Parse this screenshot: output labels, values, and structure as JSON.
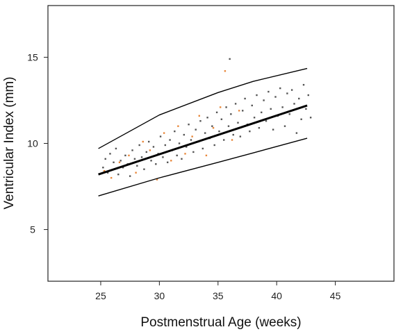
{
  "chart_data": {
    "type": "scatter",
    "title": "",
    "xlabel": "Postmenstrual Age (weeks)",
    "ylabel": "Ventricular Index (mm)",
    "xlim": [
      20.5,
      50
    ],
    "ylim": [
      2.0,
      18.0
    ],
    "xticks": [
      25,
      30,
      35,
      40,
      45
    ],
    "yticks": [
      5,
      10,
      15
    ],
    "grid": false,
    "legend": "none",
    "colors": {
      "gray_points": "#555555",
      "orange_points": "#e8873a",
      "lines": "#000000"
    },
    "lines": [
      {
        "role": "mean",
        "x": [
          24.8,
          42.6
        ],
        "y": [
          8.2,
          12.2
        ]
      },
      {
        "role": "upper",
        "x": [
          24.8,
          30,
          35,
          38,
          42.6
        ],
        "y": [
          9.7,
          11.65,
          12.95,
          13.6,
          14.35
        ]
      },
      {
        "role": "lower",
        "x": [
          24.8,
          30,
          35,
          38,
          42.6
        ],
        "y": [
          6.95,
          8.0,
          8.9,
          9.45,
          10.3
        ]
      }
    ],
    "points_gray": [
      [
        25.2,
        8.6
      ],
      [
        25.4,
        9.1
      ],
      [
        25.6,
        8.3
      ],
      [
        25.8,
        9.4
      ],
      [
        26.1,
        8.9
      ],
      [
        26.3,
        9.7
      ],
      [
        26.5,
        8.2
      ],
      [
        26.7,
        9.0
      ],
      [
        26.9,
        8.6
      ],
      [
        27.1,
        9.3
      ],
      [
        27.3,
        8.8
      ],
      [
        27.5,
        8.1
      ],
      [
        27.7,
        9.6
      ],
      [
        27.9,
        9.1
      ],
      [
        28.1,
        8.7
      ],
      [
        28.3,
        9.9
      ],
      [
        28.5,
        9.2
      ],
      [
        28.7,
        8.5
      ],
      [
        28.9,
        9.5
      ],
      [
        29.1,
        10.1
      ],
      [
        29.3,
        9.0
      ],
      [
        29.5,
        9.8
      ],
      [
        29.7,
        8.8
      ],
      [
        29.9,
        9.4
      ],
      [
        30.1,
        10.4
      ],
      [
        30.3,
        9.2
      ],
      [
        30.5,
        9.9
      ],
      [
        30.7,
        8.9
      ],
      [
        30.9,
        10.2
      ],
      [
        31.1,
        9.6
      ],
      [
        31.3,
        10.7
      ],
      [
        31.5,
        9.3
      ],
      [
        31.7,
        10.0
      ],
      [
        31.9,
        9.1
      ],
      [
        32.1,
        10.5
      ],
      [
        32.3,
        9.8
      ],
      [
        32.5,
        11.1
      ],
      [
        32.7,
        10.2
      ],
      [
        32.9,
        9.5
      ],
      [
        33.1,
        10.8
      ],
      [
        33.3,
        10.1
      ],
      [
        33.5,
        11.3
      ],
      [
        33.7,
        9.7
      ],
      [
        33.9,
        10.6
      ],
      [
        34.1,
        11.5
      ],
      [
        34.3,
        10.3
      ],
      [
        34.5,
        11.0
      ],
      [
        34.7,
        9.9
      ],
      [
        34.9,
        11.8
      ],
      [
        35.1,
        10.7
      ],
      [
        35.3,
        11.4
      ],
      [
        35.5,
        10.2
      ],
      [
        35.7,
        12.1
      ],
      [
        35.9,
        11.0
      ],
      [
        36.0,
        14.9
      ],
      [
        36.1,
        11.7
      ],
      [
        36.3,
        10.5
      ],
      [
        36.5,
        12.3
      ],
      [
        36.7,
        11.2
      ],
      [
        36.9,
        10.4
      ],
      [
        37.1,
        11.9
      ],
      [
        37.3,
        12.6
      ],
      [
        37.5,
        11.1
      ],
      [
        37.7,
        10.7
      ],
      [
        37.9,
        12.2
      ],
      [
        38.1,
        11.5
      ],
      [
        38.3,
        12.8
      ],
      [
        38.5,
        10.9
      ],
      [
        38.7,
        11.8
      ],
      [
        38.9,
        12.5
      ],
      [
        39.1,
        11.3
      ],
      [
        39.3,
        13.0
      ],
      [
        39.5,
        12.0
      ],
      [
        39.7,
        10.8
      ],
      [
        39.9,
        12.7
      ],
      [
        40.1,
        11.6
      ],
      [
        40.3,
        13.2
      ],
      [
        40.5,
        12.1
      ],
      [
        40.7,
        11.0
      ],
      [
        40.9,
        12.9
      ],
      [
        41.1,
        11.7
      ],
      [
        41.3,
        13.1
      ],
      [
        41.5,
        12.3
      ],
      [
        41.7,
        10.6
      ],
      [
        41.9,
        12.6
      ],
      [
        42.1,
        11.4
      ],
      [
        42.3,
        13.4
      ],
      [
        42.5,
        12.0
      ],
      [
        42.7,
        12.8
      ],
      [
        42.9,
        11.5
      ]
    ],
    "points_orange": [
      [
        25.3,
        8.4
      ],
      [
        25.9,
        8.0
      ],
      [
        26.6,
        8.9
      ],
      [
        27.4,
        9.3
      ],
      [
        28.0,
        8.3
      ],
      [
        28.6,
        10.1
      ],
      [
        29.2,
        9.6
      ],
      [
        29.8,
        7.9
      ],
      [
        30.4,
        10.6
      ],
      [
        31.0,
        9.0
      ],
      [
        31.6,
        11.0
      ],
      [
        32.2,
        9.4
      ],
      [
        32.8,
        10.4
      ],
      [
        33.4,
        11.6
      ],
      [
        34.0,
        9.3
      ],
      [
        34.6,
        10.9
      ],
      [
        35.2,
        12.1
      ],
      [
        35.6,
        14.2
      ],
      [
        36.2,
        10.2
      ],
      [
        36.8,
        11.9
      ]
    ]
  }
}
